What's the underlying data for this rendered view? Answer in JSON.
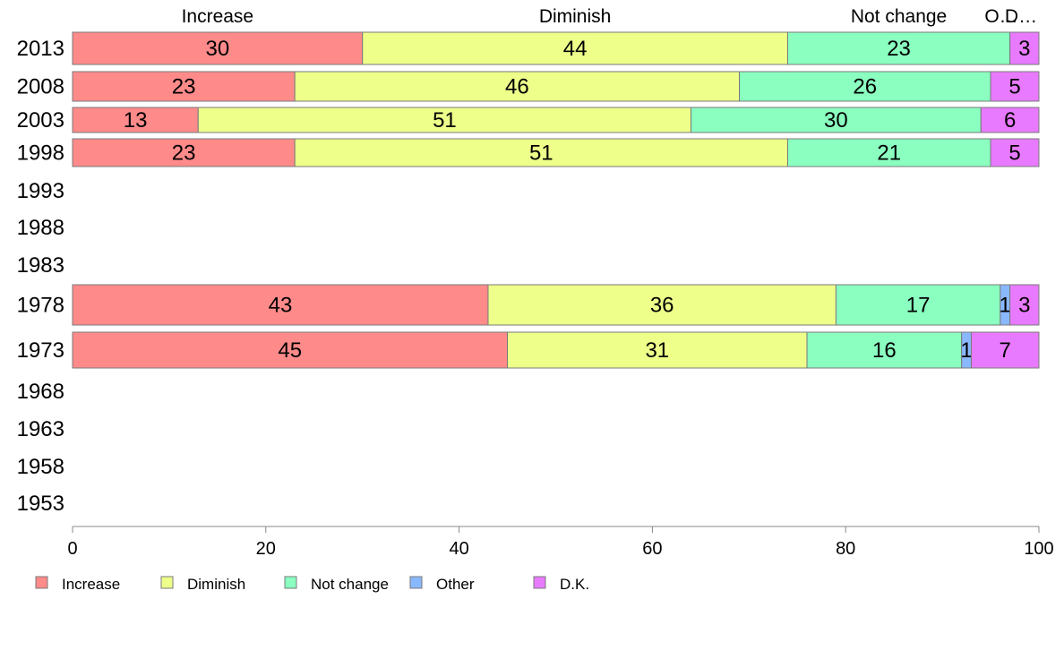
{
  "chart_data": {
    "type": "bar",
    "orientation": "horizontal",
    "stacked": true,
    "categories": [
      "2013",
      "2008",
      "2003",
      "1998",
      "1993",
      "1988",
      "1983",
      "1978",
      "1973",
      "1968",
      "1963",
      "1958",
      "1953"
    ],
    "series": [
      {
        "name": "Increase",
        "color": "#ff8a8a",
        "values": [
          30,
          23,
          13,
          23,
          null,
          null,
          null,
          43,
          45,
          null,
          null,
          null,
          null
        ]
      },
      {
        "name": "Diminish",
        "color": "#eeff8a",
        "values": [
          44,
          46,
          51,
          51,
          null,
          null,
          null,
          36,
          31,
          null,
          null,
          null,
          null
        ]
      },
      {
        "name": "Not change",
        "color": "#8affc0",
        "values": [
          23,
          26,
          30,
          21,
          null,
          null,
          null,
          17,
          16,
          null,
          null,
          null,
          null
        ]
      },
      {
        "name": "Other",
        "color": "#8ab8ff",
        "values": [
          0,
          0,
          0,
          0,
          null,
          null,
          null,
          1,
          1,
          null,
          null,
          null,
          null
        ]
      },
      {
        "name": "D.K.",
        "color": "#e87aff",
        "values": [
          3,
          5,
          6,
          5,
          null,
          null,
          null,
          3,
          7,
          null,
          null,
          null,
          null
        ]
      }
    ],
    "header_labels": [
      "Increase",
      "Diminish",
      "Not change",
      "O…",
      "D…"
    ],
    "xlim": [
      0,
      100
    ],
    "xticks": [
      "0",
      "20",
      "40",
      "60",
      "80",
      "100"
    ],
    "xlabel": "",
    "ylabel": "",
    "grid": false,
    "legend_position": "bottom-left"
  }
}
